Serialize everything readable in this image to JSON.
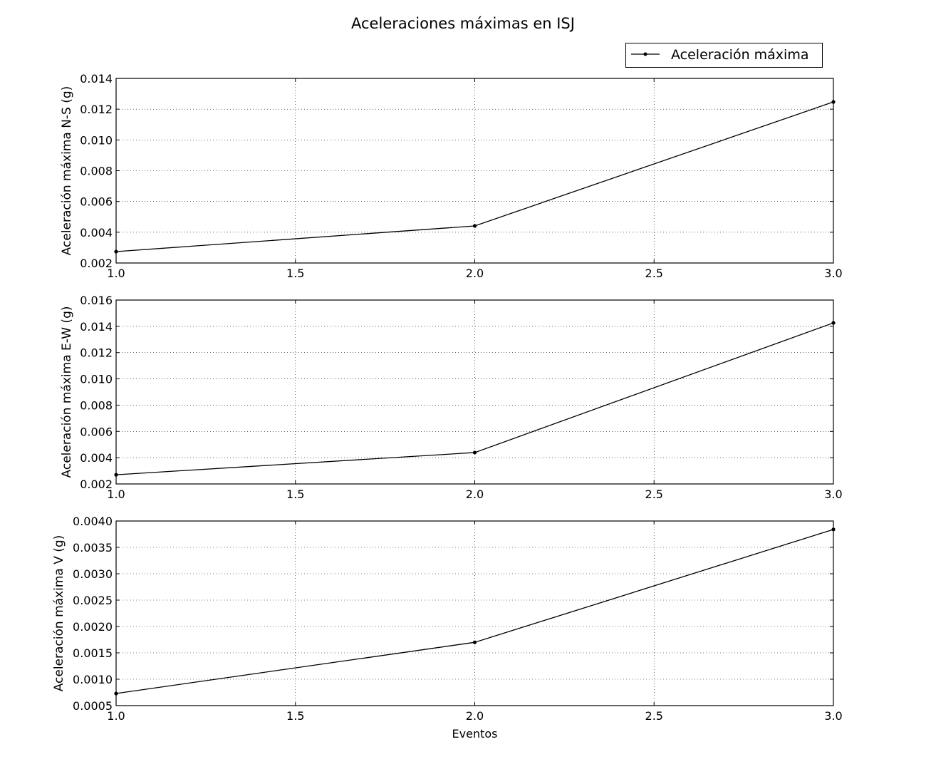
{
  "title": "Aceleraciones máximas en ISJ",
  "legend": {
    "label": "Aceleración máxima",
    "placement": "top-right"
  },
  "colors": {
    "line": "#000000",
    "grid": "#000000",
    "background": "#ffffff"
  },
  "chart_data": [
    {
      "type": "line",
      "ylabel": "Aceleración máxima N-S (g)",
      "xlabel": "",
      "x": [
        1,
        2,
        3
      ],
      "series": [
        {
          "name": "Aceleración máxima",
          "values": [
            0.00274,
            0.00441,
            0.01247
          ]
        }
      ],
      "xlim": [
        1.0,
        3.0
      ],
      "ylim": [
        0.002,
        0.014
      ],
      "xticks": [
        "1.0",
        "1.5",
        "2.0",
        "2.5",
        "3.0"
      ],
      "yticks": [
        "0.002",
        "0.004",
        "0.006",
        "0.008",
        "0.010",
        "0.012",
        "0.014"
      ],
      "grid": true
    },
    {
      "type": "line",
      "ylabel": "Aceleración máxima E-W (g)",
      "xlabel": "",
      "x": [
        1,
        2,
        3
      ],
      "series": [
        {
          "name": "Aceleración máxima",
          "values": [
            0.0027,
            0.00439,
            0.01426
          ]
        }
      ],
      "xlim": [
        1.0,
        3.0
      ],
      "ylim": [
        0.002,
        0.016
      ],
      "xticks": [
        "1.0",
        "1.5",
        "2.0",
        "2.5",
        "3.0"
      ],
      "yticks": [
        "0.002",
        "0.004",
        "0.006",
        "0.008",
        "0.010",
        "0.012",
        "0.014",
        "0.016"
      ],
      "grid": true
    },
    {
      "type": "line",
      "ylabel": "Aceleración máxima V (g)",
      "xlabel": "Eventos",
      "x": [
        1,
        2,
        3
      ],
      "series": [
        {
          "name": "Aceleración máxima",
          "values": [
            0.00073,
            0.0017,
            0.00384
          ]
        }
      ],
      "xlim": [
        1.0,
        3.0
      ],
      "ylim": [
        0.0005,
        0.004
      ],
      "xticks": [
        "1.0",
        "1.5",
        "2.0",
        "2.5",
        "3.0"
      ],
      "yticks": [
        "0.0005",
        "0.0010",
        "0.0015",
        "0.0020",
        "0.0025",
        "0.0030",
        "0.0035",
        "0.0040"
      ],
      "grid": true
    }
  ]
}
